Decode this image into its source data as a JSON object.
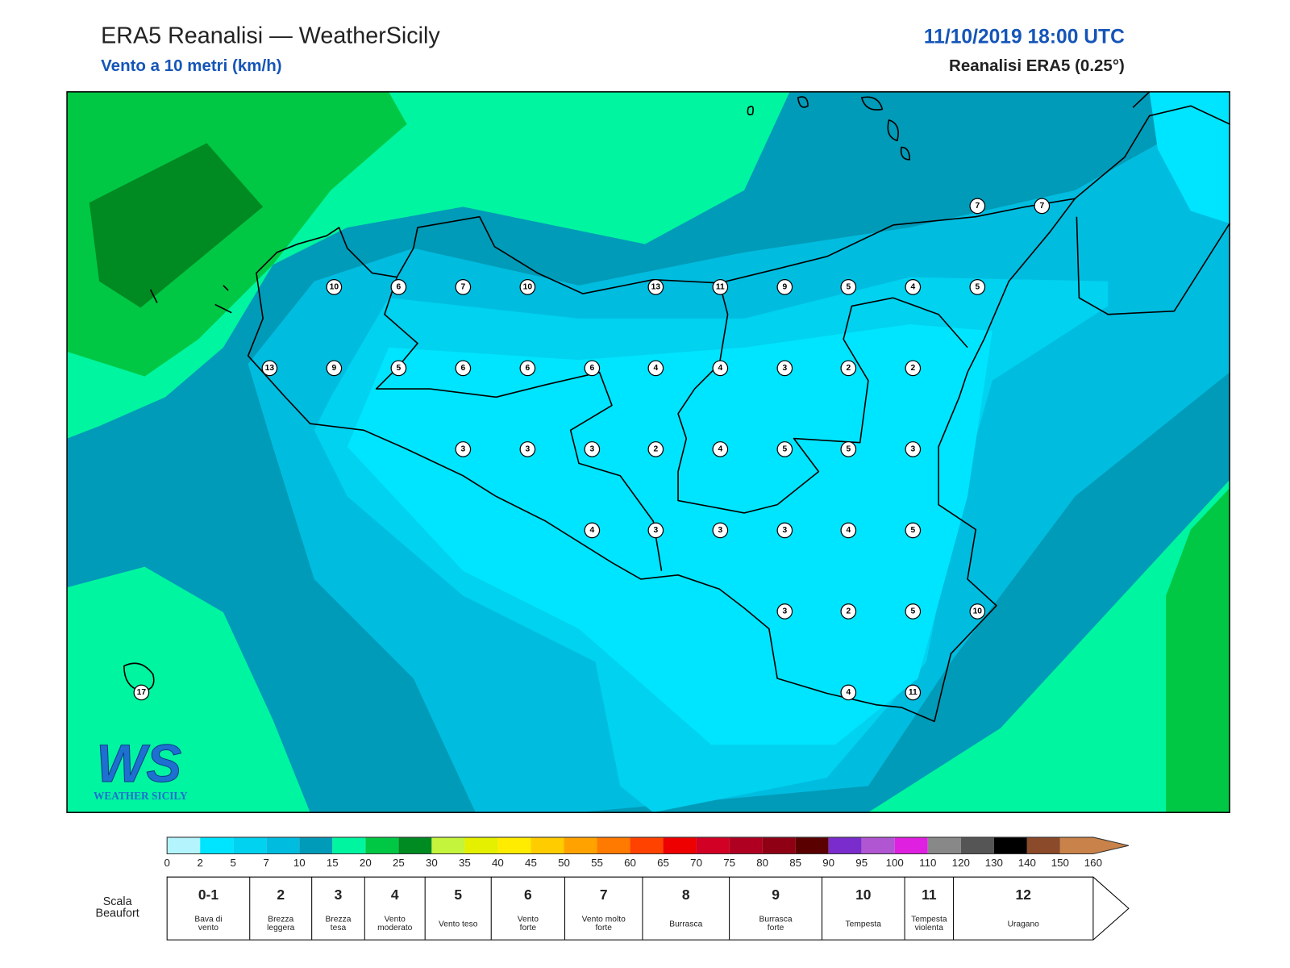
{
  "header": {
    "title": "ERA5 Reanalisi — WeatherSicily",
    "subtitle": "Vento a 10 metri (km/h)",
    "datetime": "11/10/2019 18:00 UTC",
    "source": "Reanalisi ERA5 (0.25°)"
  },
  "map": {
    "stations": [
      7,
      7,
      10,
      6,
      7,
      10,
      13,
      11,
      9,
      5,
      4,
      5,
      13,
      9,
      5,
      6,
      6,
      6,
      4,
      4,
      3,
      2,
      2,
      3,
      3,
      3,
      2,
      4,
      5,
      5,
      3,
      4,
      3,
      3,
      3,
      4,
      5,
      3,
      2,
      5,
      10,
      17,
      4,
      11
    ]
  },
  "colorbar": {
    "ticks": [
      0,
      2,
      5,
      7,
      10,
      15,
      20,
      25,
      30,
      35,
      40,
      45,
      50,
      55,
      60,
      65,
      70,
      75,
      80,
      85,
      90,
      95,
      100,
      110,
      120,
      130,
      140,
      150,
      160
    ],
    "colors": [
      "#b4f4fc",
      "#00e5ff",
      "#00d2f0",
      "#00bde0",
      "#009bb8",
      "#00f5a0",
      "#00c844",
      "#008a22",
      "#c4f43c",
      "#e4f000",
      "#ffec00",
      "#ffcc00",
      "#ffa200",
      "#ff7a00",
      "#ff4200",
      "#ee0000",
      "#d20024",
      "#b00022",
      "#900014",
      "#5a0000",
      "#7a2ccc",
      "#b056d2",
      "#e020e0",
      "#888888",
      "#555555",
      "#000000",
      "#8b4a2a",
      "#c8824a"
    ]
  },
  "beaufort": {
    "label": [
      "Scala",
      "Beaufort"
    ],
    "classes": [
      {
        "force": "0-1",
        "desc": [
          "Bava di",
          "vento"
        ]
      },
      {
        "force": "2",
        "desc": [
          "Brezza",
          "leggera"
        ]
      },
      {
        "force": "3",
        "desc": [
          "Brezza",
          "tesa"
        ]
      },
      {
        "force": "4",
        "desc": [
          "Vento",
          "moderato"
        ]
      },
      {
        "force": "5",
        "desc": [
          "Vento teso"
        ]
      },
      {
        "force": "6",
        "desc": [
          "Vento",
          "forte"
        ]
      },
      {
        "force": "7",
        "desc": [
          "Vento molto",
          "forte"
        ]
      },
      {
        "force": "8",
        "desc": [
          "Burrasca"
        ]
      },
      {
        "force": "9",
        "desc": [
          "Burrasca",
          "forte"
        ]
      },
      {
        "force": "10",
        "desc": [
          "Tempesta"
        ]
      },
      {
        "force": "11",
        "desc": [
          "Tempesta",
          "violenta"
        ]
      },
      {
        "force": "12",
        "desc": [
          "Uragano"
        ]
      }
    ]
  },
  "logo": {
    "mark": "WS",
    "name": "WEATHER SICILY"
  }
}
